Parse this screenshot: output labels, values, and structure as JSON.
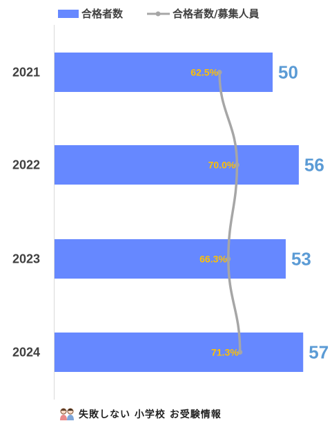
{
  "chart_data": {
    "type": "bar",
    "orientation": "horizontal",
    "categories": [
      "2021",
      "2022",
      "2023",
      "2024"
    ],
    "series": [
      {
        "name": "合格者数",
        "type": "bar",
        "values": [
          50,
          56,
          53,
          57
        ],
        "color": "#6688FF"
      },
      {
        "name": "合格者数/募集人員",
        "type": "line",
        "values": [
          62.5,
          70.0,
          66.3,
          71.3
        ],
        "labels": [
          "62.5%",
          "70.0%",
          "66.3%",
          "71.3%"
        ],
        "color": "#A6A6A6"
      }
    ],
    "value_label_color": "#5B9BD5",
    "ratio_label_color": "#FFC000",
    "legend_position": "top",
    "grid": false
  },
  "footer": {
    "text": "失敗しない 小学校 お受験情報",
    "icon": "two-children-icon"
  }
}
